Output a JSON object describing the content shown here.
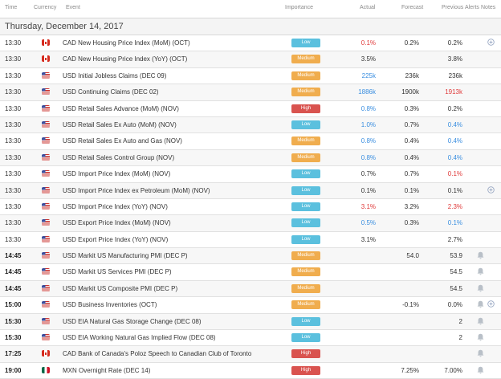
{
  "headers": {
    "time": "Time",
    "currency": "Currency",
    "event": "Event",
    "importance": "Importance",
    "actual": "Actual",
    "forecast": "Forecast",
    "previous": "Previous",
    "alerts": "Alerts",
    "notes": "Notes"
  },
  "date_heading": "Thursday, December 14, 2017",
  "colors": {
    "low": "#5bc0de",
    "medium": "#f0ad4e",
    "high": "#d9534f",
    "better": "#3a8ee0",
    "worse": "#e03a3a"
  },
  "rows": [
    {
      "time": "13:30",
      "bold": false,
      "flag": "ca",
      "event": "CAD New Housing Price Index (MoM) (OCT)",
      "importance": "Low",
      "actual": "0.1%",
      "actual_color": "red",
      "forecast": "0.2%",
      "previous": "0.2%",
      "previous_color": "",
      "alert": false,
      "note": true
    },
    {
      "time": "13:30",
      "bold": false,
      "flag": "ca",
      "event": "CAD New Housing Price Index (YoY) (OCT)",
      "importance": "Medium",
      "actual": "3.5%",
      "actual_color": "",
      "forecast": "",
      "previous": "3.8%",
      "previous_color": "",
      "alert": false,
      "note": false
    },
    {
      "time": "13:30",
      "bold": false,
      "flag": "us",
      "event": "USD Initial Jobless Claims (DEC 09)",
      "importance": "Medium",
      "actual": "225k",
      "actual_color": "blue",
      "forecast": "236k",
      "previous": "236k",
      "previous_color": "",
      "alert": false,
      "note": false
    },
    {
      "time": "13:30",
      "bold": false,
      "flag": "us",
      "event": "USD Continuing Claims (DEC 02)",
      "importance": "Medium",
      "actual": "1886k",
      "actual_color": "blue",
      "forecast": "1900k",
      "previous": "1913k",
      "previous_color": "red",
      "alert": false,
      "note": false
    },
    {
      "time": "13:30",
      "bold": false,
      "flag": "us",
      "event": "USD Retail Sales Advance (MoM) (NOV)",
      "importance": "High",
      "actual": "0.8%",
      "actual_color": "blue",
      "forecast": "0.3%",
      "previous": "0.2%",
      "previous_color": "",
      "alert": false,
      "note": false
    },
    {
      "time": "13:30",
      "bold": false,
      "flag": "us",
      "event": "USD Retail Sales Ex Auto (MoM) (NOV)",
      "importance": "Low",
      "actual": "1.0%",
      "actual_color": "blue",
      "forecast": "0.7%",
      "previous": "0.4%",
      "previous_color": "blue",
      "alert": false,
      "note": false
    },
    {
      "time": "13:30",
      "bold": false,
      "flag": "us",
      "event": "USD Retail Sales Ex Auto and Gas (NOV)",
      "importance": "Medium",
      "actual": "0.8%",
      "actual_color": "blue",
      "forecast": "0.4%",
      "previous": "0.4%",
      "previous_color": "blue",
      "alert": false,
      "note": false
    },
    {
      "time": "13:30",
      "bold": false,
      "flag": "us",
      "event": "USD Retail Sales Control Group (NOV)",
      "importance": "Medium",
      "actual": "0.8%",
      "actual_color": "blue",
      "forecast": "0.4%",
      "previous": "0.4%",
      "previous_color": "blue",
      "alert": false,
      "note": false
    },
    {
      "time": "13:30",
      "bold": false,
      "flag": "us",
      "event": "USD Import Price Index (MoM) (NOV)",
      "importance": "Low",
      "actual": "0.7%",
      "actual_color": "",
      "forecast": "0.7%",
      "previous": "0.1%",
      "previous_color": "red",
      "alert": false,
      "note": false
    },
    {
      "time": "13:30",
      "bold": false,
      "flag": "us",
      "event": "USD Import Price Index ex Petroleum (MoM) (NOV)",
      "importance": "Low",
      "actual": "0.1%",
      "actual_color": "",
      "forecast": "0.1%",
      "previous": "0.1%",
      "previous_color": "",
      "alert": false,
      "note": true
    },
    {
      "time": "13:30",
      "bold": false,
      "flag": "us",
      "event": "USD Import Price Index (YoY) (NOV)",
      "importance": "Low",
      "actual": "3.1%",
      "actual_color": "red",
      "forecast": "3.2%",
      "previous": "2.3%",
      "previous_color": "red",
      "alert": false,
      "note": false
    },
    {
      "time": "13:30",
      "bold": false,
      "flag": "us",
      "event": "USD Export Price Index (MoM) (NOV)",
      "importance": "Low",
      "actual": "0.5%",
      "actual_color": "blue",
      "forecast": "0.3%",
      "previous": "0.1%",
      "previous_color": "blue",
      "alert": false,
      "note": false
    },
    {
      "time": "13:30",
      "bold": false,
      "flag": "us",
      "event": "USD Export Price Index (YoY) (NOV)",
      "importance": "Low",
      "actual": "3.1%",
      "actual_color": "",
      "forecast": "",
      "previous": "2.7%",
      "previous_color": "",
      "alert": false,
      "note": false
    },
    {
      "time": "14:45",
      "bold": true,
      "flag": "us",
      "event": "USD Markit US Manufacturing PMI (DEC P)",
      "importance": "Medium",
      "actual": "",
      "actual_color": "",
      "forecast": "54.0",
      "previous": "53.9",
      "previous_color": "",
      "alert": true,
      "note": false
    },
    {
      "time": "14:45",
      "bold": true,
      "flag": "us",
      "event": "USD Markit US Services PMI (DEC P)",
      "importance": "Medium",
      "actual": "",
      "actual_color": "",
      "forecast": "",
      "previous": "54.5",
      "previous_color": "",
      "alert": true,
      "note": false
    },
    {
      "time": "14:45",
      "bold": true,
      "flag": "us",
      "event": "USD Markit US Composite PMI (DEC P)",
      "importance": "Medium",
      "actual": "",
      "actual_color": "",
      "forecast": "",
      "previous": "54.5",
      "previous_color": "",
      "alert": true,
      "note": false
    },
    {
      "time": "15:00",
      "bold": true,
      "flag": "us",
      "event": "USD Business Inventories (OCT)",
      "importance": "Medium",
      "actual": "",
      "actual_color": "",
      "forecast": "-0.1%",
      "previous": "0.0%",
      "previous_color": "",
      "alert": true,
      "note": true
    },
    {
      "time": "15:30",
      "bold": true,
      "flag": "us",
      "event": "USD EIA Natural Gas Storage Change (DEC 08)",
      "importance": "Low",
      "actual": "",
      "actual_color": "",
      "forecast": "",
      "previous": "2",
      "previous_color": "",
      "alert": true,
      "note": false
    },
    {
      "time": "15:30",
      "bold": true,
      "flag": "us",
      "event": "USD EIA Working Natural Gas Implied Flow (DEC 08)",
      "importance": "Low",
      "actual": "",
      "actual_color": "",
      "forecast": "",
      "previous": "2",
      "previous_color": "",
      "alert": true,
      "note": false
    },
    {
      "time": "17:25",
      "bold": true,
      "flag": "ca",
      "event": "CAD Bank of Canada's Poloz Speech to Canadian Club of Toronto",
      "importance": "High",
      "actual": "",
      "actual_color": "",
      "forecast": "",
      "previous": "",
      "previous_color": "",
      "alert": true,
      "note": false
    },
    {
      "time": "19:00",
      "bold": true,
      "flag": "mx",
      "event": "MXN Overnight Rate (DEC 14)",
      "importance": "High",
      "actual": "",
      "actual_color": "",
      "forecast": "7.25%",
      "previous": "7.00%",
      "previous_color": "",
      "alert": true,
      "note": false
    }
  ]
}
